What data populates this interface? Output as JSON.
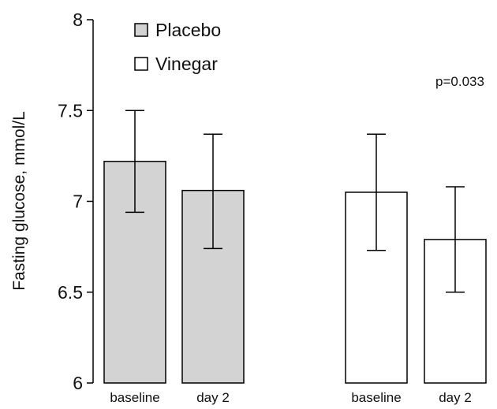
{
  "chart_data": {
    "type": "bar",
    "title": "",
    "xlabel": "",
    "ylabel": "Fasting glucose, mmol/L",
    "ylim": [
      6,
      8
    ],
    "yticks": [
      "6",
      "6.5",
      "7",
      "7.5",
      "8"
    ],
    "grid": false,
    "legend_position": "top-left",
    "annotation": "p=0.033",
    "groups": [
      {
        "name": "Placebo",
        "color": "#d3d3d3",
        "bars": [
          {
            "category": "baseline",
            "value": 7.22,
            "err_low": 6.94,
            "err_high": 7.5
          },
          {
            "category": "day 2",
            "value": 7.06,
            "err_low": 6.74,
            "err_high": 7.37
          }
        ]
      },
      {
        "name": "Vinegar",
        "color": "#ffffff",
        "bars": [
          {
            "category": "baseline",
            "value": 7.05,
            "err_low": 6.73,
            "err_high": 7.37
          },
          {
            "category": "day 2",
            "value": 6.79,
            "err_low": 6.5,
            "err_high": 7.08
          }
        ]
      }
    ]
  }
}
